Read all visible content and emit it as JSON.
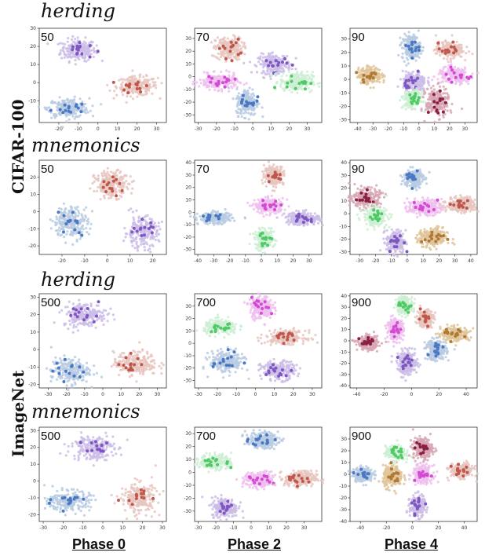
{
  "methods": [
    "herding",
    "mnemonics",
    "herding",
    "mnemonics"
  ],
  "datasets": [
    "CIFAR-100",
    "ImageNet"
  ],
  "phases": [
    "Phase 0",
    "Phase 2",
    "Phase 4"
  ],
  "colors": {
    "purple": "#7e57c2",
    "purple_light": "#cbbde8",
    "red": "#c0574a",
    "red_light": "#e8c5bf",
    "blue": "#4a78c2",
    "blue_light": "#b9cbe3",
    "green": "#4ecb65",
    "green_light": "#cdeed3",
    "magenta": "#d44ad4",
    "magenta_light": "#efc0ef",
    "brown": "#b07a34",
    "brown_light": "#e0c49a",
    "maroon": "#8c2040",
    "maroon_light": "#d7a7b5"
  },
  "chart_data": [
    {
      "type": "scatter",
      "dataset": "CIFAR-100",
      "method": "herding",
      "phase": "Phase 0",
      "classes_label": "50",
      "xlim": [
        -30,
        35
      ],
      "ylim": [
        -22,
        30
      ],
      "xticks": [
        -20,
        -10,
        0,
        10,
        20,
        30
      ],
      "yticks": [
        -10,
        0,
        10,
        20,
        30
      ],
      "clusters": [
        {
          "color": "purple",
          "cx": -10,
          "cy": 18,
          "sx": 6,
          "sy": 4
        },
        {
          "color": "red",
          "cx": 20,
          "cy": -2,
          "sx": 7,
          "sy": 3.5
        },
        {
          "color": "blue",
          "cx": -15,
          "cy": -14,
          "sx": 7,
          "sy": 3.5
        }
      ]
    },
    {
      "type": "scatter",
      "dataset": "CIFAR-100",
      "method": "herding",
      "phase": "Phase 2",
      "classes_label": "70",
      "xlim": [
        -32,
        38
      ],
      "ylim": [
        -36,
        38
      ],
      "xticks": [
        -30,
        -20,
        -10,
        0,
        10,
        20,
        30
      ],
      "yticks": [
        -30,
        -20,
        -10,
        0,
        10,
        20,
        30
      ],
      "clusters": [
        {
          "color": "red",
          "cx": -13,
          "cy": 22,
          "sx": 5,
          "sy": 6
        },
        {
          "color": "purple",
          "cx": 12,
          "cy": 10,
          "sx": 6,
          "sy": 5
        },
        {
          "color": "magenta",
          "cx": -19,
          "cy": -4,
          "sx": 7,
          "sy": 4
        },
        {
          "color": "green",
          "cx": 24,
          "cy": -4,
          "sx": 6,
          "sy": 5
        },
        {
          "color": "blue",
          "cx": -3,
          "cy": -20,
          "sx": 4,
          "sy": 7
        }
      ]
    },
    {
      "type": "scatter",
      "dataset": "CIFAR-100",
      "method": "herding",
      "phase": "Phase 4",
      "classes_label": "90",
      "xlim": [
        -45,
        38
      ],
      "ylim": [
        -32,
        38
      ],
      "xticks": [
        -40,
        -30,
        -20,
        -10,
        0,
        10,
        20,
        30
      ],
      "yticks": [
        -30,
        -20,
        -10,
        0,
        10,
        20,
        30
      ],
      "clusters": [
        {
          "color": "blue",
          "cx": -5,
          "cy": 24,
          "sx": 4,
          "sy": 6
        },
        {
          "color": "red",
          "cx": 20,
          "cy": 22,
          "sx": 6,
          "sy": 4
        },
        {
          "color": "brown",
          "cx": -32,
          "cy": 3,
          "sx": 5,
          "sy": 4
        },
        {
          "color": "purple",
          "cx": -3,
          "cy": -2,
          "sx": 5,
          "sy": 5
        },
        {
          "color": "magenta",
          "cx": 23,
          "cy": 3,
          "sx": 7,
          "sy": 4
        },
        {
          "color": "green",
          "cx": -4,
          "cy": -15,
          "sx": 4,
          "sy": 4
        },
        {
          "color": "maroon",
          "cx": 12,
          "cy": -17,
          "sx": 5,
          "sy": 7
        }
      ]
    },
    {
      "type": "scatter",
      "dataset": "CIFAR-100",
      "method": "mnemonics",
      "phase": "Phase 0",
      "classes_label": "50",
      "xlim": [
        -30,
        26
      ],
      "ylim": [
        -25,
        30
      ],
      "xticks": [
        -20,
        -10,
        0,
        10,
        20
      ],
      "yticks": [
        -20,
        -10,
        0,
        10,
        20
      ],
      "clusters": [
        {
          "color": "red",
          "cx": 2,
          "cy": 16,
          "sx": 5,
          "sy": 5
        },
        {
          "color": "blue",
          "cx": -16,
          "cy": -6,
          "sx": 5,
          "sy": 6
        },
        {
          "color": "purple",
          "cx": 15,
          "cy": -12,
          "sx": 5,
          "sy": 6
        }
      ]
    },
    {
      "type": "scatter",
      "dataset": "CIFAR-100",
      "method": "mnemonics",
      "phase": "Phase 2",
      "classes_label": "70",
      "xlim": [
        -42,
        38
      ],
      "ylim": [
        -34,
        42
      ],
      "xticks": [
        -40,
        -30,
        -20,
        -10,
        0,
        10,
        20,
        30
      ],
      "yticks": [
        -30,
        -20,
        -10,
        0,
        10,
        20,
        30,
        40
      ],
      "clusters": [
        {
          "color": "red",
          "cx": 8,
          "cy": 30,
          "sx": 4,
          "sy": 5
        },
        {
          "color": "magenta",
          "cx": 5,
          "cy": 5,
          "sx": 6,
          "sy": 4
        },
        {
          "color": "blue",
          "cx": -29,
          "cy": -5,
          "sx": 7,
          "sy": 3
        },
        {
          "color": "purple",
          "cx": 26,
          "cy": -5,
          "sx": 7,
          "sy": 3.5
        },
        {
          "color": "green",
          "cx": 2,
          "cy": -22,
          "sx": 4,
          "sy": 5
        }
      ]
    },
    {
      "type": "scatter",
      "dataset": "CIFAR-100",
      "method": "mnemonics",
      "phase": "Phase 4",
      "classes_label": "90",
      "xlim": [
        -36,
        44
      ],
      "ylim": [
        -32,
        42
      ],
      "xticks": [
        -30,
        -20,
        -10,
        0,
        10,
        20,
        30,
        40
      ],
      "yticks": [
        -30,
        -20,
        -10,
        0,
        10,
        20,
        30,
        40
      ],
      "clusters": [
        {
          "color": "blue",
          "cx": 4,
          "cy": 28,
          "sx": 4,
          "sy": 5
        },
        {
          "color": "maroon",
          "cx": -26,
          "cy": 12,
          "sx": 6,
          "sy": 5
        },
        {
          "color": "green",
          "cx": -20,
          "cy": -2,
          "sx": 5,
          "sy": 5
        },
        {
          "color": "magenta",
          "cx": 11,
          "cy": 5,
          "sx": 7,
          "sy": 4
        },
        {
          "color": "red",
          "cx": 34,
          "cy": 7,
          "sx": 6,
          "sy": 4
        },
        {
          "color": "brown",
          "cx": 16,
          "cy": -19,
          "sx": 6,
          "sy": 5
        },
        {
          "color": "purple",
          "cx": -7,
          "cy": -22,
          "sx": 4,
          "sy": 6
        }
      ]
    },
    {
      "type": "scatter",
      "dataset": "ImageNet",
      "method": "herding",
      "phase": "Phase 0",
      "classes_label": "500",
      "xlim": [
        -35,
        35
      ],
      "ylim": [
        -22,
        32
      ],
      "xticks": [
        -30,
        -20,
        -10,
        0,
        10,
        20,
        30
      ],
      "yticks": [
        -20,
        -10,
        0,
        10,
        20,
        30
      ],
      "clusters": [
        {
          "color": "purple",
          "cx": -10,
          "cy": 20,
          "sx": 8,
          "sy": 4.5
        },
        {
          "color": "blue",
          "cx": -18,
          "cy": -12,
          "sx": 7,
          "sy": 5
        },
        {
          "color": "red",
          "cx": 18,
          "cy": -8,
          "sx": 8,
          "sy": 4.5
        }
      ]
    },
    {
      "type": "scatter",
      "dataset": "ImageNet",
      "method": "herding",
      "phase": "Phase 2",
      "classes_label": "700",
      "xlim": [
        -32,
        35
      ],
      "ylim": [
        -36,
        40
      ],
      "xticks": [
        -30,
        -20,
        -10,
        0,
        10,
        20,
        30
      ],
      "yticks": [
        -30,
        -20,
        -10,
        0,
        10,
        20,
        30
      ],
      "clusters": [
        {
          "color": "magenta",
          "cx": 3,
          "cy": 29,
          "sx": 4,
          "sy": 6
        },
        {
          "color": "green",
          "cx": -18,
          "cy": 13,
          "sx": 6,
          "sy": 4
        },
        {
          "color": "red",
          "cx": 16,
          "cy": 5,
          "sx": 7,
          "sy": 3.5
        },
        {
          "color": "blue",
          "cx": -15,
          "cy": -15,
          "sx": 6,
          "sy": 6
        },
        {
          "color": "purple",
          "cx": 12,
          "cy": -22,
          "sx": 6,
          "sy": 5
        }
      ]
    },
    {
      "type": "scatter",
      "dataset": "ImageNet",
      "method": "herding",
      "phase": "Phase 4",
      "classes_label": "900",
      "xlim": [
        -45,
        48
      ],
      "ylim": [
        -42,
        42
      ],
      "xticks": [
        -40,
        -20,
        0,
        20,
        40
      ],
      "yticks": [
        -40,
        -30,
        -20,
        -10,
        0,
        10,
        20,
        30,
        40
      ],
      "clusters": [
        {
          "color": "green",
          "cx": -5,
          "cy": 32,
          "sx": 4,
          "sy": 5
        },
        {
          "color": "red",
          "cx": 10,
          "cy": 20,
          "sx": 4,
          "sy": 5
        },
        {
          "color": "magenta",
          "cx": -12,
          "cy": 10,
          "sx": 4,
          "sy": 6
        },
        {
          "color": "brown",
          "cx": 32,
          "cy": 6,
          "sx": 7,
          "sy": 4
        },
        {
          "color": "maroon",
          "cx": -32,
          "cy": -2,
          "sx": 5,
          "sy": 4
        },
        {
          "color": "blue",
          "cx": 18,
          "cy": -8,
          "sx": 5,
          "sy": 6
        },
        {
          "color": "purple",
          "cx": -3,
          "cy": -20,
          "sx": 5,
          "sy": 7
        }
      ]
    },
    {
      "type": "scatter",
      "dataset": "ImageNet",
      "method": "mnemonics",
      "phase": "Phase 0",
      "classes_label": "500",
      "xlim": [
        -32,
        32
      ],
      "ylim": [
        -24,
        32
      ],
      "xticks": [
        -30,
        -20,
        -10,
        0,
        10,
        20,
        30
      ],
      "yticks": [
        -20,
        -10,
        0,
        10,
        20,
        30
      ],
      "clusters": [
        {
          "color": "purple",
          "cx": -5,
          "cy": 20,
          "sx": 7,
          "sy": 5
        },
        {
          "color": "blue",
          "cx": -17,
          "cy": -12,
          "sx": 7,
          "sy": 4
        },
        {
          "color": "red",
          "cx": 18,
          "cy": -10,
          "sx": 6,
          "sy": 6
        }
      ]
    },
    {
      "type": "scatter",
      "dataset": "ImageNet",
      "method": "mnemonics",
      "phase": "Phase 2",
      "classes_label": "700",
      "xlim": [
        -32,
        40
      ],
      "ylim": [
        -38,
        35
      ],
      "xticks": [
        -30,
        -20,
        -10,
        0,
        10,
        20,
        30
      ],
      "yticks": [
        -30,
        -20,
        -10,
        0,
        10,
        20,
        30
      ],
      "clusters": [
        {
          "color": "blue",
          "cx": 6,
          "cy": 25,
          "sx": 6,
          "sy": 4
        },
        {
          "color": "green",
          "cx": -20,
          "cy": 8,
          "sx": 6,
          "sy": 4
        },
        {
          "color": "magenta",
          "cx": 5,
          "cy": -6,
          "sx": 6,
          "sy": 4
        },
        {
          "color": "red",
          "cx": 28,
          "cy": -5,
          "sx": 6,
          "sy": 4
        },
        {
          "color": "purple",
          "cx": -15,
          "cy": -27,
          "sx": 5,
          "sy": 5
        }
      ]
    },
    {
      "type": "scatter",
      "dataset": "ImageNet",
      "method": "mnemonics",
      "phase": "Phase 4",
      "classes_label": "900",
      "xlim": [
        -48,
        50
      ],
      "ylim": [
        -40,
        40
      ],
      "xticks": [
        -40,
        -20,
        0,
        20,
        40
      ],
      "yticks": [
        -40,
        -30,
        -20,
        -10,
        0,
        10,
        20,
        30
      ],
      "clusters": [
        {
          "color": "maroon",
          "cx": 8,
          "cy": 22,
          "sx": 5,
          "sy": 6
        },
        {
          "color": "green",
          "cx": -13,
          "cy": 18,
          "sx": 5,
          "sy": 4
        },
        {
          "color": "blue",
          "cx": -38,
          "cy": 0,
          "sx": 5,
          "sy": 4
        },
        {
          "color": "brown",
          "cx": -15,
          "cy": -2,
          "sx": 5,
          "sy": 6
        },
        {
          "color": "magenta",
          "cx": 8,
          "cy": 0,
          "sx": 5,
          "sy": 5
        },
        {
          "color": "red",
          "cx": 38,
          "cy": 3,
          "sx": 6,
          "sy": 4
        },
        {
          "color": "purple",
          "cx": 4,
          "cy": -27,
          "sx": 4,
          "sy": 6
        }
      ]
    }
  ]
}
